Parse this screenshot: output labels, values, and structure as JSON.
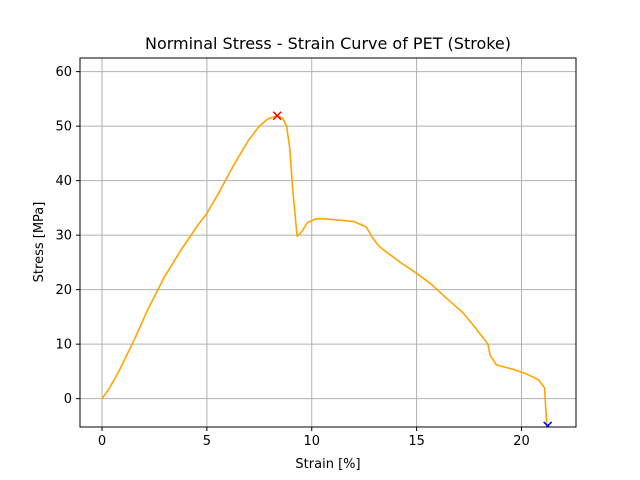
{
  "chart_data": {
    "type": "line",
    "title": "Norminal Stress - Strain Curve of PET (Stroke)",
    "xlabel": "Strain [%]",
    "ylabel": "Stress [MPa]",
    "xlim": [
      -1.05,
      22.6
    ],
    "ylim": [
      -5.2,
      62.5
    ],
    "xticks": [
      0,
      5,
      10,
      15,
      20
    ],
    "yticks": [
      0,
      10,
      20,
      30,
      40,
      50,
      60
    ],
    "grid": true,
    "colors": {
      "line": "#ffa500",
      "peak_marker": "#ff0000",
      "end_marker": "#0000ff"
    },
    "series": [
      {
        "x": [
          0.0,
          0.3,
          0.8,
          1.5,
          2.2,
          3.0,
          3.8,
          4.6,
          5.0,
          5.6,
          6.3,
          7.0,
          7.5,
          7.9,
          8.2,
          8.35,
          8.6,
          8.8,
          8.95,
          9.1,
          9.2,
          9.3,
          9.5,
          9.8,
          10.2,
          10.6,
          11.2,
          12.0,
          12.6,
          12.9,
          13.2,
          13.6,
          14.3,
          15.0,
          15.7,
          16.4,
          17.2,
          17.8,
          18.2,
          18.4,
          18.5,
          18.8,
          19.5,
          20.2,
          20.8,
          21.1,
          21.2,
          21.25
        ],
        "y": [
          0.0,
          1.6,
          5.0,
          10.5,
          16.5,
          22.5,
          27.5,
          32.0,
          34.0,
          38.0,
          43.0,
          47.5,
          50.0,
          51.3,
          51.7,
          51.9,
          51.5,
          50.0,
          46.0,
          38.0,
          34.0,
          29.8,
          30.5,
          32.3,
          33.0,
          33.0,
          32.8,
          32.5,
          31.5,
          29.5,
          28.0,
          26.8,
          24.8,
          23.0,
          21.0,
          18.5,
          15.8,
          13.0,
          11.0,
          10.0,
          8.0,
          6.2,
          5.5,
          4.6,
          3.5,
          2.0,
          -4.5,
          -5.0
        ]
      }
    ],
    "markers": [
      {
        "name": "max-stress",
        "x": 8.35,
        "y": 51.9,
        "symbol": "x"
      },
      {
        "name": "fracture",
        "x": 21.25,
        "y": -5.0,
        "symbol": "x"
      }
    ]
  }
}
